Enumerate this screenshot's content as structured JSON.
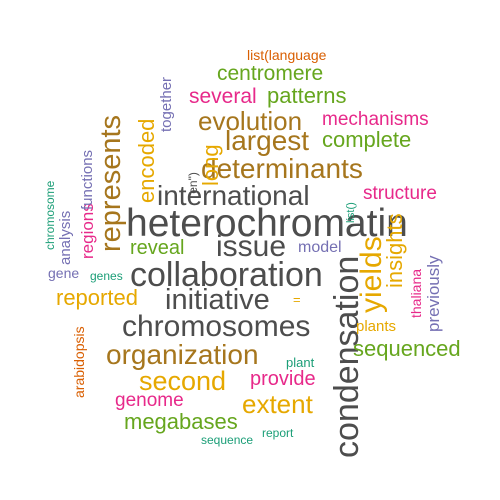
{
  "colors": {
    "dark_gray": "#4d4d4d",
    "brown": "#a6761d",
    "orange": "#e6a800",
    "green": "#66a61e",
    "magenta": "#e7298a",
    "purple": "#7570b3",
    "teal": "#1b9e77",
    "rust": "#d95f02"
  },
  "words": {
    "heterochromatin": "heterochromatin",
    "collaboration": "collaboration",
    "chromosomes": "chromosomes",
    "condensation": "condensation",
    "international": "international",
    "issue": "issue",
    "initiative": "initiative",
    "organization": "organization",
    "determinants": "determinants",
    "largest": "largest",
    "evolution": "evolution",
    "represents": "represents",
    "yields": "yields",
    "second": "second",
    "extent": "extent",
    "megabases": "megabases",
    "encoded": "encoded",
    "centromere": "centromere",
    "patterns": "patterns",
    "several": "several",
    "complete": "complete",
    "mechanisms": "mechanisms",
    "structure": "structure",
    "insights": "insights",
    "sequenced": "sequenced",
    "reported": "reported",
    "reveal": "reveal",
    "provide": "provide",
    "genome": "genome",
    "long": "long",
    "together": "together",
    "en": "\"en\")",
    "list_language": "list(language",
    "functions": "functions",
    "regions": "regions",
    "analysis": "analysis",
    "chromosome": "chromosome",
    "gene": "gene",
    "genes": "genes",
    "arabidopsis": "arabidopsis",
    "model": "model",
    "list_paren": "list()",
    "previously": "previously",
    "thaliana": "thaliana",
    "plants": "plants",
    "equals": "=",
    "plant": "plant",
    "sequence": "sequence",
    "report": "report"
  }
}
